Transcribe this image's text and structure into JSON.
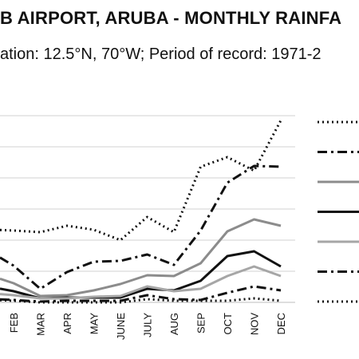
{
  "chart_data": {
    "type": "line",
    "title": "B AIRPORT, ARUBA - MONTHLY RAINFA",
    "subtitle": "ation: 12.5°N, 70°W; Period of record: 1971-2",
    "categories": [
      "FEB",
      "MAR",
      "APR",
      "MAY",
      "JUNE",
      "JULY",
      "AUG",
      "SEP",
      "OCT",
      "NOV",
      "DEC"
    ],
    "grid": true,
    "legend_position": "right",
    "series": [
      {
        "style": "dotted",
        "color": "#111111",
        "values": [
          90,
          88,
          96,
          91,
          78,
          107,
          88,
          170,
          182,
          165,
          228
        ]
      },
      {
        "style": "dashdot",
        "color": "#111111",
        "values": [
          46,
          17,
          38,
          51,
          52,
          60,
          47,
          90,
          150,
          171,
          170
        ]
      },
      {
        "style": "solid",
        "color": "#8c8c8c",
        "values": [
          24,
          8,
          9,
          15,
          23,
          34,
          33,
          49,
          89,
          104,
          96
        ]
      },
      {
        "style": "solid",
        "color": "#111111",
        "values": [
          14,
          5,
          6,
          6,
          6,
          17,
          15,
          27,
          58,
          64,
          45
        ]
      },
      {
        "style": "solid",
        "color": "#a6a6a6",
        "values": [
          9,
          5,
          5,
          7,
          8,
          20,
          14,
          17,
          33,
          45,
          33
        ]
      },
      {
        "style": "dashdot",
        "color": "#111111",
        "values": [
          3,
          1,
          2,
          2,
          2,
          9,
          4,
          3,
          12,
          20,
          15
        ]
      },
      {
        "style": "dotted",
        "color": "#111111",
        "values": [
          2,
          0,
          0,
          0,
          0,
          4,
          2,
          2,
          2,
          5,
          2
        ]
      }
    ]
  }
}
